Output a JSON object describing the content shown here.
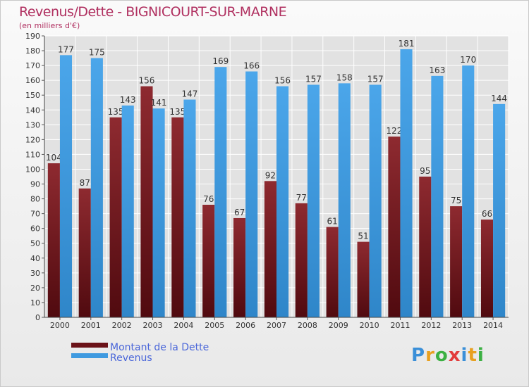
{
  "header": {
    "title": "Revenus/Dette - BIGNICOURT-SUR-MARNE",
    "subtitle": "(en milliers d'€)"
  },
  "brand": {
    "letters": [
      "P",
      "r",
      "o",
      "x",
      "i",
      "t",
      "i"
    ],
    "colors": [
      "#3a8fd8",
      "#e8a020",
      "#3cb043",
      "#e23b3b",
      "#3a8fd8",
      "#e8a020",
      "#3cb043"
    ]
  },
  "colors": {
    "dette": "#6b1218",
    "revenus": "#3f9ae0"
  },
  "chart_data": {
    "type": "bar",
    "title": "Revenus/Dette - BIGNICOURT-SUR-MARNE",
    "subtitle": "(en milliers d'€)",
    "categories": [
      "2000",
      "2001",
      "2002",
      "2003",
      "2004",
      "2005",
      "2006",
      "2007",
      "2008",
      "2009",
      "2010",
      "2011",
      "2012",
      "2013",
      "2014"
    ],
    "series": [
      {
        "name": "Montant de la Dette",
        "values": [
          104,
          87,
          135,
          156,
          135,
          76,
          67,
          92,
          77,
          61,
          51,
          122,
          95,
          75,
          66
        ]
      },
      {
        "name": "Revenus",
        "values": [
          177,
          175,
          143,
          141,
          147,
          169,
          166,
          156,
          157,
          158,
          157,
          181,
          163,
          170,
          144
        ]
      }
    ],
    "ylim": [
      0,
      190
    ],
    "ytick_step": 10,
    "grid": true,
    "legend": "bottom-left"
  }
}
